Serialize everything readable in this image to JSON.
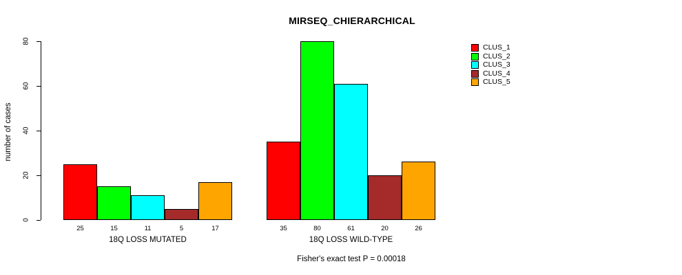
{
  "title": "MIRSEQ_CHIERARCHICAL",
  "y_axis": {
    "label": "number of cases",
    "ticks": [
      0,
      20,
      40,
      60,
      80
    ]
  },
  "caption": "Fisher's exact test P = 0.00018",
  "legend": {
    "items": [
      {
        "label": "CLUS_1",
        "color": "#FF0000"
      },
      {
        "label": "CLUS_2",
        "color": "#00FF00"
      },
      {
        "label": "CLUS_3",
        "color": "#00FFFF"
      },
      {
        "label": "CLUS_4",
        "color": "#A52A2A"
      },
      {
        "label": "CLUS_5",
        "color": "#FFA500"
      }
    ]
  },
  "chart_data": {
    "type": "bar",
    "title": "MIRSEQ_CHIERARCHICAL",
    "xlabel": "",
    "ylabel": "number of cases",
    "ylim": [
      0,
      80
    ],
    "yticks": [
      0,
      20,
      40,
      60,
      80
    ],
    "grid": false,
    "legend_position": "right",
    "categories": [
      "18Q LOSS MUTATED",
      "18Q LOSS WILD-TYPE"
    ],
    "series": [
      {
        "name": "CLUS_1",
        "color": "#FF0000",
        "values": [
          25,
          35
        ]
      },
      {
        "name": "CLUS_2",
        "color": "#00FF00",
        "values": [
          15,
          80
        ]
      },
      {
        "name": "CLUS_3",
        "color": "#00FFFF",
        "values": [
          11,
          61
        ]
      },
      {
        "name": "CLUS_4",
        "color": "#A52A2A",
        "values": [
          5,
          20
        ]
      },
      {
        "name": "CLUS_5",
        "color": "#FFA500",
        "values": [
          17,
          26
        ]
      }
    ],
    "bar_labels": [
      [
        25,
        15,
        11,
        5,
        17
      ],
      [
        35,
        80,
        61,
        20,
        26
      ]
    ],
    "bar_border_color": "#000000",
    "annotation": "Fisher's exact test P = 0.00018"
  }
}
